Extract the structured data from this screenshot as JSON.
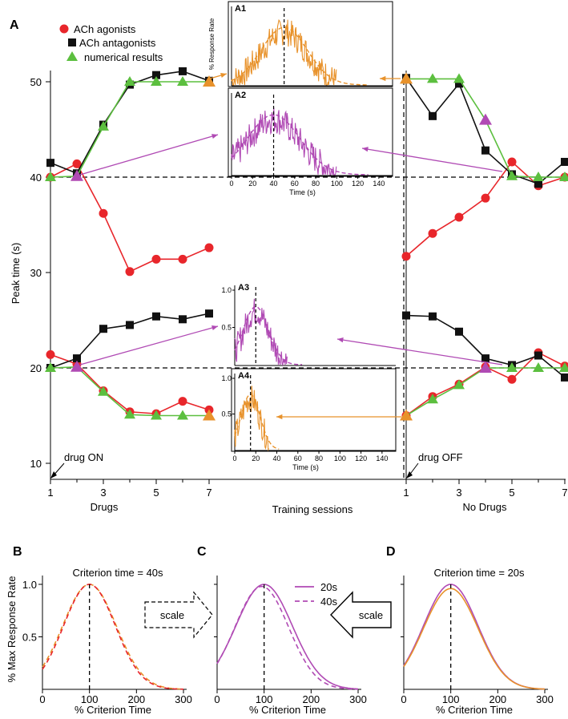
{
  "panel_labels": {
    "A": "A",
    "B": "B",
    "C": "C",
    "D": "D",
    "A1": "A1",
    "A2": "A2",
    "A3": "A3",
    "A4": "A4"
  },
  "colors": {
    "agonist": "#e8262b",
    "antagonist": "#111111",
    "numerical": "#5cbf3f",
    "purple": "#b04ab4",
    "orange": "#e8922b"
  },
  "legend": {
    "agonists": "ACh agonists",
    "antagonists": "ACh antagonists",
    "numerical": "numerical results"
  },
  "axes": {
    "y_label": "Peak time (s)",
    "y_ticks": [
      "10",
      "20",
      "30",
      "40",
      "50"
    ],
    "x_ticks_left": [
      "1",
      "3",
      "5",
      "7"
    ],
    "x_ticks_right": [
      "1",
      "3",
      "5",
      "7"
    ],
    "drugs_label": "Drugs",
    "no_drugs_label": "No Drugs",
    "training_label": "Training sessions",
    "drug_on": "drug ON",
    "drug_off": "drug OFF"
  },
  "insets": {
    "y_ticks": [
      "0.5",
      "1.0"
    ],
    "x_ticks": [
      "0",
      "20",
      "40",
      "60",
      "80",
      "100",
      "120",
      "140"
    ],
    "x_label": "Time (s)",
    "y_label_a1": "% Response Rate"
  },
  "chart_data": [
    {
      "type": "line",
      "title": "A",
      "xlabel": "Training sessions",
      "ylabel": "Peak time (s)",
      "ylim": [
        10,
        53
      ],
      "x": [
        1,
        2,
        3,
        4,
        5,
        6,
        7
      ],
      "series": [
        {
          "name": "ACh agonists (drug ON, criterion 40s)",
          "phase": "drug",
          "values": [
            40,
            41.4,
            36.2,
            30.1,
            31.4,
            31.4,
            32.6
          ]
        },
        {
          "name": "ACh antagonists (drug ON, criterion 40s)",
          "phase": "drug",
          "values": [
            41.5,
            40.4,
            45.5,
            49.7,
            50.7,
            51.1,
            50.1
          ]
        },
        {
          "name": "numerical results (drug ON, criterion 40s)",
          "phase": "drug",
          "values": [
            40,
            40.1,
            45.3,
            50,
            50,
            50,
            50
          ]
        },
        {
          "name": "ACh agonists (drug ON, criterion 20s)",
          "phase": "drug",
          "values": [
            21.4,
            20.4,
            17.6,
            15.4,
            15.2,
            16.5,
            15.6
          ]
        },
        {
          "name": "ACh antagonists (drug ON, criterion 20s)",
          "phase": "drug",
          "values": [
            20,
            21.0,
            24.1,
            24.5,
            25.4,
            25.1,
            25.7
          ]
        },
        {
          "name": "numerical results (drug ON, criterion 20s)",
          "phase": "drug",
          "values": [
            20,
            20.1,
            17.5,
            15.1,
            15,
            15,
            15
          ]
        },
        {
          "name": "ACh agonists (drug OFF, criterion 40s)",
          "phase": "nodrug",
          "values": [
            31.7,
            34.1,
            35.8,
            37.8,
            41.6,
            39.1,
            40.0
          ]
        },
        {
          "name": "ACh antagonists (drug OFF, criterion 40s)",
          "phase": "nodrug",
          "values": [
            50.4,
            46.4,
            49.8,
            42.8,
            40.3,
            39.3,
            41.6
          ]
        },
        {
          "name": "numerical results (drug OFF, criterion 40s)",
          "phase": "nodrug",
          "values": [
            50.3,
            50.3,
            50.3,
            46.0,
            40.1,
            40,
            40
          ]
        },
        {
          "name": "ACh agonists (drug OFF, criterion 20s)",
          "phase": "nodrug",
          "values": [
            15.0,
            17.0,
            18.3,
            20.1,
            18.8,
            21.6,
            20.2
          ]
        },
        {
          "name": "ACh antagonists (drug OFF, criterion 20s)",
          "phase": "nodrug",
          "values": [
            25.5,
            25.4,
            23.8,
            21.0,
            20.3,
            21.3,
            19.0
          ]
        },
        {
          "name": "numerical results (drug OFF, criterion 20s)",
          "phase": "nodrug",
          "values": [
            15,
            16.7,
            18.2,
            20,
            20,
            20,
            20
          ]
        }
      ],
      "reference_lines": [
        40,
        20
      ]
    },
    {
      "type": "line",
      "title": "A1",
      "xlabel": "Time (s)",
      "ylabel": "% Response Rate",
      "peak_s": 50,
      "sd_s": 22,
      "max_s": 100,
      "xlim": [
        0,
        150
      ],
      "ylim": [
        0,
        1
      ],
      "color": "orange"
    },
    {
      "type": "line",
      "title": "A2",
      "xlabel": "Time (s)",
      "ylabel": "",
      "peak_s": 40,
      "sd_s": 25,
      "max_s": 100,
      "xlim": [
        0,
        150
      ],
      "ylim": [
        0,
        1
      ],
      "color": "purple"
    },
    {
      "type": "line",
      "title": "A3",
      "xlabel": "",
      "ylabel": "",
      "peak_s": 20,
      "sd_s": 12,
      "max_s": 50,
      "xlim": [
        0,
        150
      ],
      "ylim": [
        0,
        1
      ],
      "color": "purple"
    },
    {
      "type": "line",
      "title": "A4",
      "xlabel": "Time (s)",
      "ylabel": "",
      "peak_s": 15,
      "sd_s": 9,
      "max_s": 33,
      "xlim": [
        0,
        150
      ],
      "ylim": [
        0,
        1
      ],
      "color": "orange"
    },
    {
      "type": "line",
      "title": "B",
      "subtitle": "Criterion time = 40s",
      "xlabel": "% Criterion Time",
      "ylabel": "% Max Response Rate",
      "xlim": [
        0,
        300
      ],
      "ylim": [
        0,
        1.05
      ],
      "x_ticks": [
        "0",
        "100",
        "200",
        "300"
      ],
      "y_ticks": [
        "0.5",
        "1.0"
      ],
      "series": [
        {
          "name": "ACh agonists",
          "style": "dashed",
          "color": "orange",
          "peak": 1.0,
          "mean": 100,
          "sd": 57
        },
        {
          "name": "ACh antagonists",
          "style": "dashed",
          "color": "red",
          "peak": 1.0,
          "mean": 100,
          "sd": 55
        }
      ]
    },
    {
      "type": "line",
      "title": "C",
      "xlabel": "% Criterion Time",
      "ylabel": "",
      "xlim": [
        0,
        300
      ],
      "ylim": [
        0,
        1.05
      ],
      "x_ticks": [
        "0",
        "100",
        "200",
        "300"
      ],
      "scale_label": "scale",
      "series": [
        {
          "name": "20s",
          "style": "solid",
          "color": "purple",
          "peak": 1.0,
          "mean": 100,
          "sd": 60
        },
        {
          "name": "40s",
          "style": "dashed",
          "color": "purple",
          "peak": 0.98,
          "mean": 95,
          "sd": 57
        }
      ]
    },
    {
      "type": "line",
      "title": "D",
      "subtitle": "Criterion time = 20s",
      "xlabel": "% Criterion Time",
      "ylabel": "",
      "xlim": [
        0,
        300
      ],
      "ylim": [
        0,
        1.05
      ],
      "x_ticks": [
        "0",
        "100",
        "200",
        "300"
      ],
      "scale_label": "scale",
      "series": [
        {
          "name": "ACh antagonists",
          "style": "solid",
          "color": "purple",
          "peak": 1.0,
          "mean": 100,
          "sd": 58
        },
        {
          "name": "ACh agonists",
          "style": "solid",
          "color": "orange",
          "peak": 0.96,
          "mean": 100,
          "sd": 58
        }
      ]
    }
  ]
}
